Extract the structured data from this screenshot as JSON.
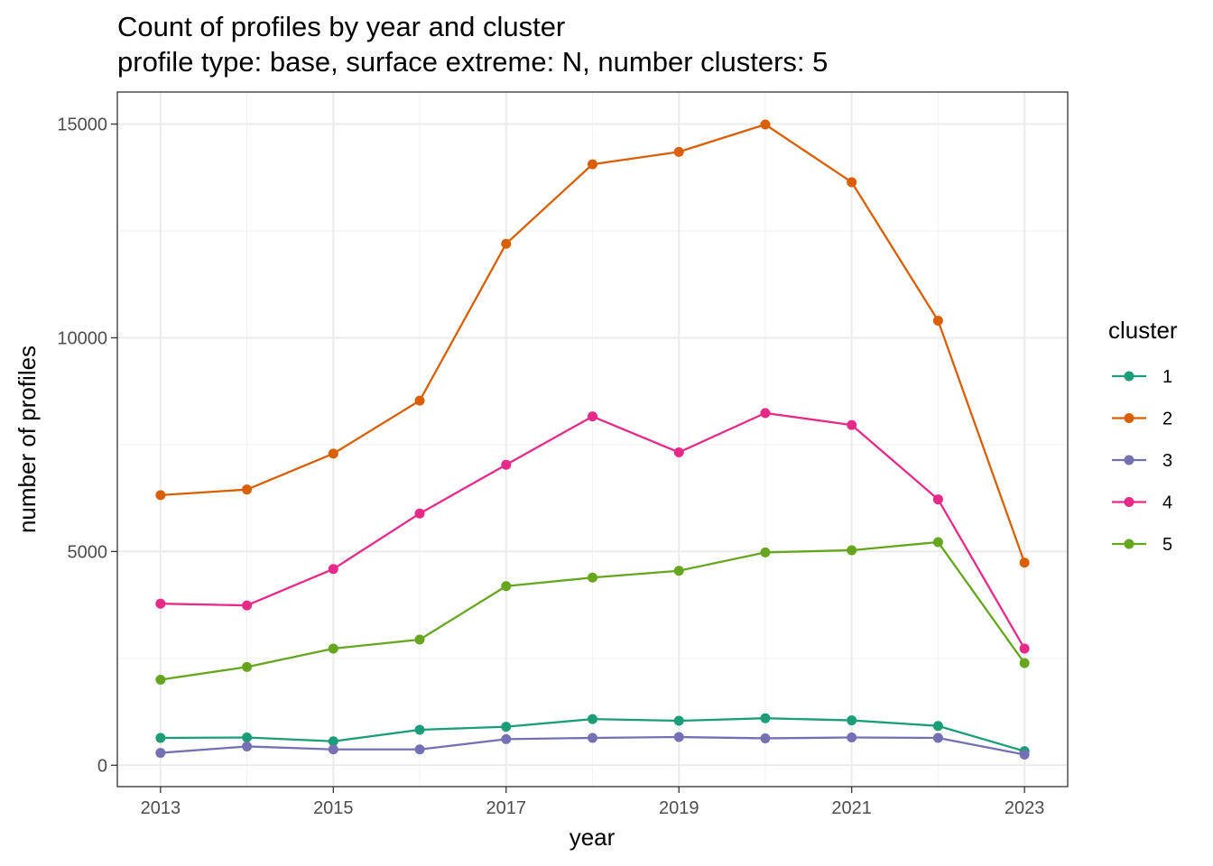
{
  "chart_data": {
    "type": "line",
    "title": "Count of profiles by year and cluster",
    "subtitle": "profile type: base, surface extreme: N, number clusters: 5",
    "xlabel": "year",
    "ylabel": "number of profiles",
    "x": [
      2013,
      2014,
      2015,
      2016,
      2017,
      2018,
      2019,
      2020,
      2021,
      2022,
      2023
    ],
    "x_ticks": [
      "2013",
      "2015",
      "2017",
      "2019",
      "2021",
      "2023"
    ],
    "y_ticks": [
      "0",
      "5000",
      "10000",
      "15000"
    ],
    "xlim": [
      2012.5,
      2023.5
    ],
    "ylim": [
      -500,
      15750
    ],
    "grid": true,
    "legend": {
      "title": "cluster",
      "position": "right"
    },
    "series": [
      {
        "name": "1",
        "color": "#1b9e77",
        "values": [
          640,
          650,
          560,
          830,
          900,
          1080,
          1040,
          1100,
          1050,
          920,
          330
        ]
      },
      {
        "name": "2",
        "color": "#d95f02",
        "values": [
          6320,
          6450,
          7290,
          8530,
          12200,
          14060,
          14350,
          14990,
          13640,
          10400,
          4740
        ]
      },
      {
        "name": "3",
        "color": "#7570b3",
        "values": [
          290,
          440,
          370,
          370,
          610,
          640,
          660,
          630,
          650,
          640,
          250
        ]
      },
      {
        "name": "4",
        "color": "#e7298a",
        "values": [
          3780,
          3740,
          4590,
          5890,
          7030,
          8160,
          7320,
          8240,
          7960,
          6220,
          2730
        ]
      },
      {
        "name": "5",
        "color": "#66a61e",
        "values": [
          2000,
          2300,
          2730,
          2940,
          4190,
          4390,
          4550,
          4980,
          5030,
          5220,
          2390
        ]
      }
    ]
  }
}
